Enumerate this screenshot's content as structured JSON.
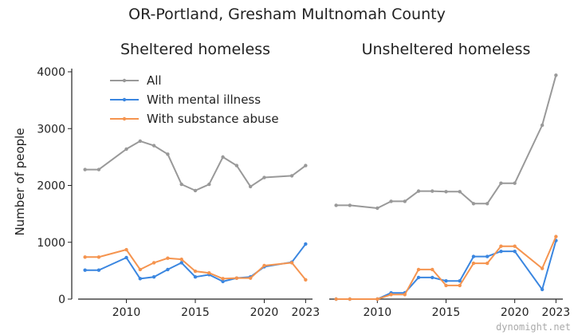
{
  "chart_data": {
    "type": "line",
    "title": "OR-Portland, Gresham Multnomah County",
    "ylabel": "Number of people",
    "ylim": [
      0,
      4000
    ],
    "xlim": [
      2006.5,
      2023.5
    ],
    "yticks": [
      0,
      1000,
      2000,
      3000,
      4000
    ],
    "xticks": [
      2010,
      2015,
      2020,
      2023
    ],
    "grid": false,
    "legend": "top-left of first panel",
    "watermark": "dynomight.net",
    "colors": {
      "All": "#999999",
      "With mental illness": "#3a86e0",
      "With substance abuse": "#f5944f"
    },
    "legend_labels": [
      "All",
      "With mental illness",
      "With substance abuse"
    ],
    "panels": [
      {
        "title": "Sheltered homeless",
        "series": [
          {
            "name": "All",
            "x": [
              2007,
              2008,
              2010,
              2011,
              2012,
              2013,
              2014,
              2015,
              2016,
              2017,
              2018,
              2019,
              2020,
              2022,
              2023
            ],
            "y": [
              2280,
              2280,
              2640,
              2780,
              2700,
              2550,
              2020,
              1910,
              2020,
              2500,
              2350,
              1980,
              2140,
              2170,
              2350
            ]
          },
          {
            "name": "With mental illness",
            "x": [
              2007,
              2008,
              2010,
              2011,
              2012,
              2013,
              2014,
              2015,
              2016,
              2017,
              2018,
              2019,
              2020,
              2022,
              2023
            ],
            "y": [
              510,
              510,
              730,
              360,
              390,
              520,
              640,
              390,
              430,
              310,
              370,
              390,
              570,
              650,
              970
            ]
          },
          {
            "name": "With substance abuse",
            "x": [
              2007,
              2008,
              2010,
              2011,
              2012,
              2013,
              2014,
              2015,
              2016,
              2017,
              2018,
              2019,
              2020,
              2022,
              2023
            ],
            "y": [
              740,
              740,
              870,
              520,
              640,
              720,
              700,
              490,
              460,
              360,
              370,
              370,
              590,
              640,
              340
            ]
          }
        ]
      },
      {
        "title": "Unsheltered homeless",
        "series": [
          {
            "name": "All",
            "x": [
              2007,
              2008,
              2010,
              2011,
              2012,
              2013,
              2014,
              2015,
              2016,
              2017,
              2018,
              2019,
              2020,
              2022,
              2023
            ],
            "y": [
              1650,
              1650,
              1600,
              1720,
              1720,
              1900,
              1900,
              1890,
              1890,
              1680,
              1680,
              2040,
              2040,
              3060,
              3940
            ]
          },
          {
            "name": "With mental illness",
            "x": [
              2007,
              2008,
              2010,
              2011,
              2012,
              2013,
              2014,
              2015,
              2016,
              2017,
              2018,
              2019,
              2020,
              2022,
              2023
            ],
            "y": [
              0,
              0,
              0,
              110,
              110,
              380,
              380,
              320,
              320,
              750,
              750,
              840,
              840,
              170,
              1030
            ]
          },
          {
            "name": "With substance abuse",
            "x": [
              2007,
              2008,
              2010,
              2011,
              2012,
              2013,
              2014,
              2015,
              2016,
              2017,
              2018,
              2019,
              2020,
              2022,
              2023
            ],
            "y": [
              0,
              0,
              0,
              80,
              80,
              520,
              520,
              240,
              240,
              630,
              630,
              930,
              930,
              540,
              1100
            ]
          }
        ]
      }
    ]
  }
}
